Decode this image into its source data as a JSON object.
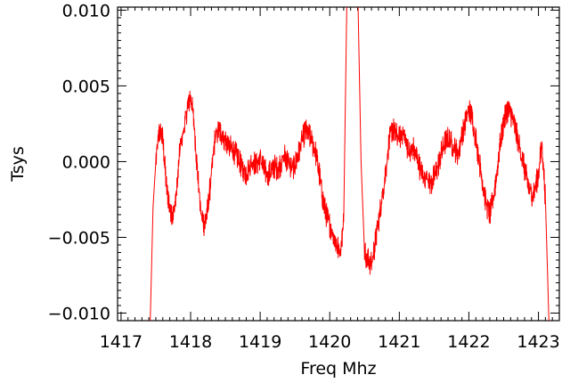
{
  "chart_data": {
    "type": "line",
    "title": "",
    "xlabel": "Freq Mhz",
    "ylabel": "Tsys",
    "xlim": [
      1416.95,
      1423.3
    ],
    "ylim": [
      -0.0105,
      0.0102
    ],
    "grid": false,
    "line_color": "#ff0000",
    "x_ticks": [
      1417,
      1418,
      1419,
      1420,
      1421,
      1422,
      1423
    ],
    "x_tick_labels": [
      "1417",
      "1418",
      "1419",
      "1420",
      "1421",
      "1422",
      "1423"
    ],
    "y_ticks": [
      0.01,
      0.005,
      0.0,
      -0.005,
      -0.01
    ],
    "y_tick_labels": [
      "0.010",
      "0.005",
      "0.000",
      "−0.005",
      "−0.010"
    ],
    "series": [
      {
        "values_x": [
          1417.42,
          1417.46,
          1417.5,
          1417.55,
          1417.6,
          1417.65,
          1417.7,
          1417.75,
          1417.8,
          1417.85,
          1417.9,
          1417.95,
          1418.0,
          1418.05,
          1418.1,
          1418.15,
          1418.2,
          1418.25,
          1418.3,
          1418.35,
          1418.4,
          1418.45,
          1418.5,
          1418.55,
          1418.6,
          1418.65,
          1418.7,
          1418.75,
          1418.8,
          1418.85,
          1418.9,
          1418.95,
          1419.0,
          1419.05,
          1419.1,
          1419.15,
          1419.2,
          1419.25,
          1419.3,
          1419.35,
          1419.4,
          1419.45,
          1419.5,
          1419.55,
          1419.6,
          1419.65,
          1419.7,
          1419.75,
          1419.8,
          1419.85,
          1419.9,
          1419.95,
          1420.0,
          1420.05,
          1420.1,
          1420.15,
          1420.2,
          1420.25,
          1420.3,
          1420.35,
          1420.4,
          1420.45,
          1420.5,
          1420.55,
          1420.6,
          1420.65,
          1420.7,
          1420.75,
          1420.8,
          1420.85,
          1420.9,
          1420.95,
          1421.0,
          1421.05,
          1421.1,
          1421.15,
          1421.2,
          1421.25,
          1421.3,
          1421.35,
          1421.4,
          1421.45,
          1421.5,
          1421.55,
          1421.6,
          1421.65,
          1421.7,
          1421.75,
          1421.8,
          1421.85,
          1421.9,
          1421.95,
          1422.0,
          1422.05,
          1422.1,
          1422.15,
          1422.2,
          1422.25,
          1422.3,
          1422.35,
          1422.4,
          1422.45,
          1422.5,
          1422.55,
          1422.6,
          1422.65,
          1422.7,
          1422.75,
          1422.8,
          1422.85,
          1422.9,
          1422.95,
          1423.0,
          1423.05,
          1423.1,
          1423.15
        ],
        "values_y": [
          -0.0105,
          -0.003,
          0.0,
          0.002,
          0.0015,
          -0.0015,
          -0.003,
          -0.0036,
          -0.002,
          0.001,
          0.002,
          0.0035,
          0.0044,
          0.0025,
          -0.0008,
          -0.0035,
          -0.0042,
          -0.003,
          -0.0008,
          0.0015,
          0.0021,
          0.0018,
          0.0014,
          0.001,
          0.0008,
          0.0005,
          0.0,
          -0.0005,
          -0.0008,
          -0.0003,
          0.0,
          -0.0002,
          0.0003,
          -0.0005,
          -0.0008,
          -0.0007,
          -0.0003,
          -0.0005,
          -0.0001,
          0.0004,
          0.0,
          -0.0005,
          -0.0002,
          0.0005,
          0.0014,
          0.002,
          0.0018,
          0.0012,
          0.0005,
          -0.0008,
          -0.0025,
          -0.0035,
          -0.0042,
          -0.0048,
          -0.0055,
          -0.006,
          -0.004,
          0.012,
          0.012,
          0.012,
          0.012,
          0.0,
          -0.006,
          -0.0065,
          -0.0068,
          -0.0055,
          -0.004,
          -0.0025,
          -0.0008,
          0.0012,
          0.0022,
          0.0018,
          0.0015,
          0.002,
          0.0012,
          0.0005,
          0.0009,
          0.0003,
          -0.0005,
          -0.0012,
          -0.0008,
          -0.0015,
          -0.001,
          -0.0004,
          0.0005,
          0.0012,
          0.0015,
          0.0012,
          0.0008,
          0.0005,
          0.0018,
          0.0026,
          0.0035,
          0.0028,
          0.0015,
          0.0,
          -0.0015,
          -0.0028,
          -0.0035,
          -0.0025,
          -0.0008,
          0.0012,
          0.0026,
          0.0034,
          0.0032,
          0.0025,
          0.0015,
          0.0005,
          -0.0005,
          -0.0015,
          -0.0022,
          -0.0018,
          -0.0008,
          0.0012,
          -0.0025,
          -0.0105
        ]
      }
    ]
  }
}
